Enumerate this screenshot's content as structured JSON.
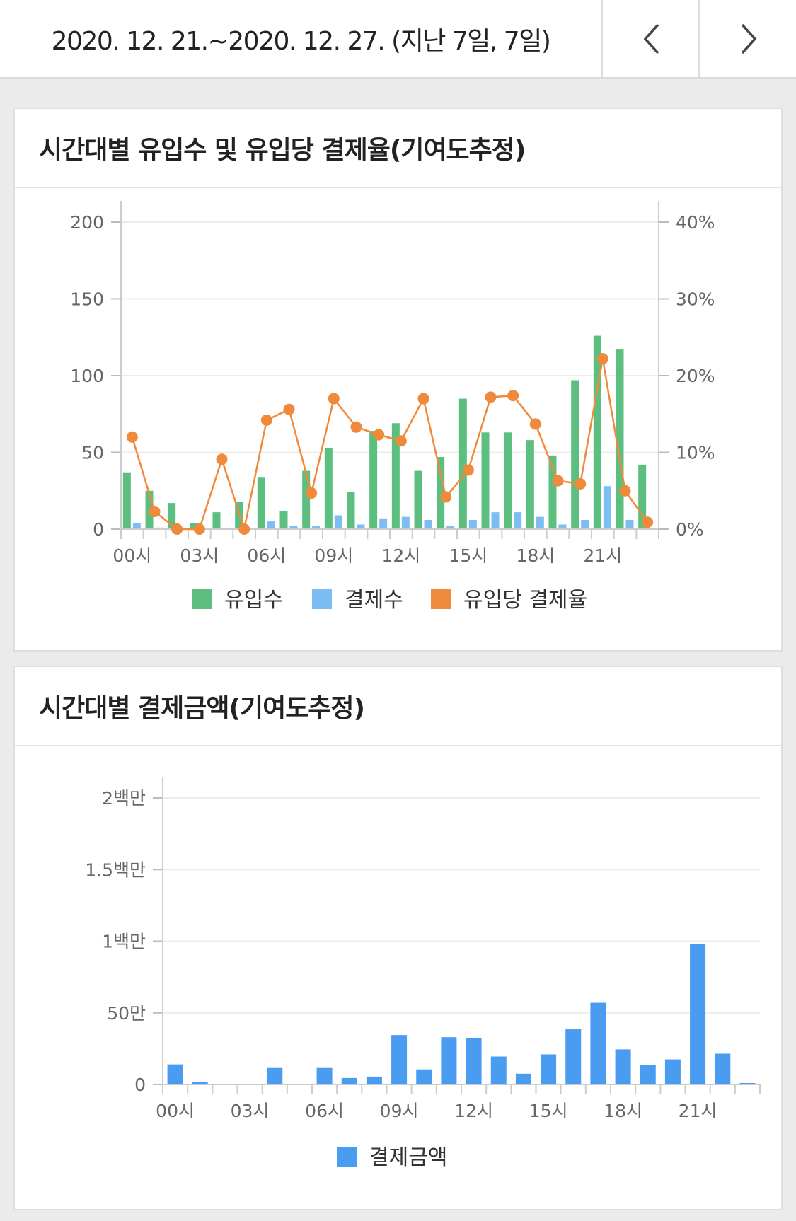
{
  "header": {
    "date_range": "2020. 12. 21.~2020. 12. 27. (지난 7일, 7일)",
    "prev_icon": "chevron-left-icon",
    "next_icon": "chevron-right-icon"
  },
  "colors": {
    "inflow": "#5cbf7f",
    "payments": "#7cbdf3",
    "rate": "#ef8a3c",
    "amount": "#4a9cf0"
  },
  "card1": {
    "title": "시간대별 유입수 및 유입당 결제율(기여도추정)"
  },
  "card2": {
    "title": "시간대별 결제금액(기여도추정)"
  },
  "chart_data": [
    {
      "type": "bar",
      "title": "시간대별 유입수 및 유입당 결제율(기여도추정)",
      "categories": [
        "00시",
        "01시",
        "02시",
        "03시",
        "04시",
        "05시",
        "06시",
        "07시",
        "08시",
        "09시",
        "10시",
        "11시",
        "12시",
        "13시",
        "14시",
        "15시",
        "16시",
        "17시",
        "18시",
        "19시",
        "20시",
        "21시",
        "22시",
        "23시"
      ],
      "x_tick_labels": [
        "00시",
        "03시",
        "06시",
        "09시",
        "12시",
        "15시",
        "18시",
        "21시"
      ],
      "y_left": {
        "ylim": [
          0,
          200
        ],
        "ticks": [
          "0",
          "50",
          "100",
          "150",
          "200"
        ]
      },
      "y_right": {
        "ylim": [
          0,
          0.4
        ],
        "ticks": [
          "0%",
          "10%",
          "20%",
          "30%",
          "40%"
        ]
      },
      "grid": true,
      "legend": "bottom",
      "series": [
        {
          "name": "유입수",
          "type": "bar",
          "axis": "left",
          "values": [
            37,
            25,
            17,
            4,
            11,
            18,
            34,
            12,
            38,
            53,
            24,
            64,
            69,
            38,
            47,
            85,
            63,
            63,
            58,
            48,
            97,
            126,
            117,
            42
          ]
        },
        {
          "name": "결제수",
          "type": "bar",
          "axis": "left",
          "values": [
            4,
            1,
            0,
            0,
            0,
            0,
            5,
            2,
            2,
            9,
            3,
            7,
            8,
            6,
            2,
            6,
            11,
            11,
            8,
            3,
            6,
            28,
            6,
            0
          ]
        },
        {
          "name": "유입당 결제율",
          "type": "line",
          "axis": "right",
          "values": [
            0.12,
            0.023,
            0,
            0,
            0.091,
            0,
            0.142,
            0.156,
            0.047,
            0.17,
            0.133,
            0.123,
            0.115,
            0.17,
            0.042,
            0.077,
            0.172,
            0.174,
            0.137,
            0.063,
            0.059,
            0.222,
            0.05,
            0.009
          ]
        }
      ]
    },
    {
      "type": "bar",
      "title": "시간대별 결제금액(기여도추정)",
      "categories": [
        "00시",
        "01시",
        "02시",
        "03시",
        "04시",
        "05시",
        "06시",
        "07시",
        "08시",
        "09시",
        "10시",
        "11시",
        "12시",
        "13시",
        "14시",
        "15시",
        "16시",
        "17시",
        "18시",
        "19시",
        "20시",
        "21시",
        "22시",
        "23시"
      ],
      "x_tick_labels": [
        "00시",
        "03시",
        "06시",
        "09시",
        "12시",
        "15시",
        "18시",
        "21시"
      ],
      "ylim": [
        0,
        2000000
      ],
      "y_ticks": [
        "0",
        "50만",
        "1백만",
        "1.5백만",
        "2백만"
      ],
      "grid": true,
      "legend": "bottom",
      "series": [
        {
          "name": "결제금액",
          "values": [
            140000,
            20000,
            0,
            0,
            115000,
            0,
            115000,
            45000,
            55000,
            345000,
            105000,
            330000,
            325000,
            195000,
            75000,
            210000,
            385000,
            570000,
            245000,
            135000,
            175000,
            980000,
            215000,
            10000
          ]
        }
      ]
    }
  ]
}
